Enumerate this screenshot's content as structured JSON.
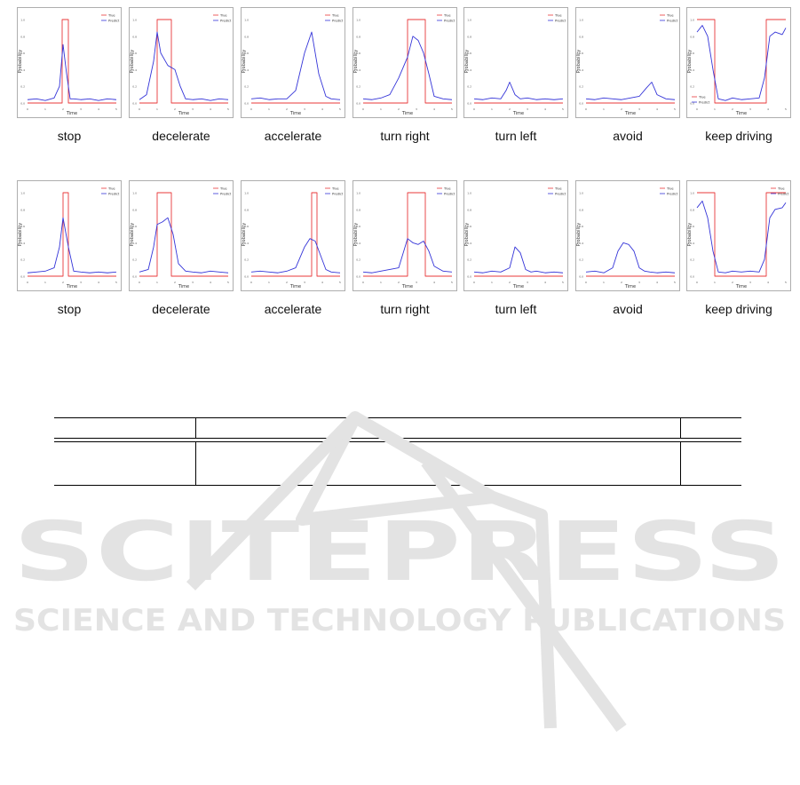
{
  "figure": {
    "legend": {
      "true_label": "True",
      "predict_label": "Predict"
    },
    "axis": {
      "xlabel": "Time",
      "ylabel": "Probability"
    },
    "colors": {
      "true": "#e8383a",
      "predict": "#3434d8",
      "frame": "#9a9a9a"
    },
    "rows": [
      {
        "panels": [
          {
            "caption": "stop"
          },
          {
            "caption": "decelerate"
          },
          {
            "caption": "accelerate"
          },
          {
            "caption": "turn right"
          },
          {
            "caption": "turn left"
          },
          {
            "caption": "avoid"
          },
          {
            "caption": "keep driving"
          }
        ]
      },
      {
        "panels": [
          {
            "caption": "stop"
          },
          {
            "caption": "decelerate"
          },
          {
            "caption": "accelerate"
          },
          {
            "caption": "turn right"
          },
          {
            "caption": "turn left"
          },
          {
            "caption": "avoid"
          },
          {
            "caption": "keep driving"
          }
        ]
      }
    ]
  },
  "chart_data": [
    {
      "type": "line",
      "row": 1,
      "caption": "stop",
      "xlabel": "Time",
      "ylabel": "Probability",
      "xlim": [
        0,
        5
      ],
      "ylim": [
        0,
        1
      ],
      "series": [
        {
          "name": "True",
          "x": [
            0,
            1.95,
            1.95,
            2.3,
            2.3,
            5
          ],
          "values": [
            0,
            0,
            1,
            1,
            0,
            0
          ]
        },
        {
          "name": "Predict",
          "x": [
            0,
            0.5,
            1,
            1.5,
            1.8,
            2.0,
            2.2,
            2.4,
            2.6,
            3,
            3.5,
            4,
            4.5,
            5
          ],
          "values": [
            0.04,
            0.05,
            0.03,
            0.06,
            0.2,
            0.7,
            0.35,
            0.05,
            0.05,
            0.04,
            0.05,
            0.03,
            0.05,
            0.04
          ]
        }
      ]
    },
    {
      "type": "line",
      "row": 1,
      "caption": "decelerate",
      "xlabel": "Time",
      "ylabel": "Probability",
      "xlim": [
        0,
        5
      ],
      "ylim": [
        0,
        1
      ],
      "series": [
        {
          "name": "True",
          "x": [
            0,
            1.0,
            1.0,
            1.8,
            1.8,
            5
          ],
          "values": [
            0,
            0,
            1,
            1,
            0,
            0
          ]
        },
        {
          "name": "Predict",
          "x": [
            0,
            0.4,
            0.8,
            1.0,
            1.2,
            1.6,
            2.0,
            2.3,
            2.6,
            3,
            3.5,
            4,
            4.5,
            5
          ],
          "values": [
            0.04,
            0.1,
            0.5,
            0.85,
            0.6,
            0.45,
            0.4,
            0.2,
            0.05,
            0.04,
            0.05,
            0.03,
            0.05,
            0.04
          ]
        }
      ]
    },
    {
      "type": "line",
      "row": 1,
      "caption": "accelerate",
      "xlabel": "Time",
      "ylabel": "Probability",
      "xlim": [
        0,
        5
      ],
      "ylim": [
        0,
        1
      ],
      "series": [
        {
          "name": "True",
          "x": [
            0,
            5
          ],
          "values": [
            0,
            0
          ]
        },
        {
          "name": "Predict",
          "x": [
            0,
            0.5,
            1,
            1.5,
            2,
            2.5,
            3.0,
            3.4,
            3.8,
            4.2,
            4.5,
            5
          ],
          "values": [
            0.05,
            0.06,
            0.04,
            0.05,
            0.05,
            0.15,
            0.6,
            0.85,
            0.35,
            0.08,
            0.05,
            0.04
          ]
        }
      ]
    },
    {
      "type": "line",
      "row": 1,
      "caption": "turn right",
      "xlabel": "Time",
      "ylabel": "Probability",
      "xlim": [
        0,
        5
      ],
      "ylim": [
        0,
        1
      ],
      "series": [
        {
          "name": "True",
          "x": [
            0,
            2.5,
            2.5,
            3.5,
            3.5,
            5
          ],
          "values": [
            0,
            0,
            1,
            1,
            0,
            0
          ]
        },
        {
          "name": "Predict",
          "x": [
            0,
            0.5,
            1,
            1.5,
            2.0,
            2.5,
            2.8,
            3.1,
            3.4,
            3.7,
            4.0,
            4.5,
            5
          ],
          "values": [
            0.05,
            0.04,
            0.06,
            0.1,
            0.3,
            0.55,
            0.8,
            0.75,
            0.6,
            0.35,
            0.08,
            0.05,
            0.04
          ]
        }
      ]
    },
    {
      "type": "line",
      "row": 1,
      "caption": "turn left",
      "xlabel": "Time",
      "ylabel": "Probability",
      "xlim": [
        0,
        5
      ],
      "ylim": [
        0,
        1
      ],
      "series": [
        {
          "name": "True",
          "x": [
            0,
            5
          ],
          "values": [
            0,
            0
          ]
        },
        {
          "name": "Predict",
          "x": [
            0,
            0.5,
            1,
            1.5,
            1.8,
            2.0,
            2.3,
            2.6,
            3,
            3.5,
            4,
            4.5,
            5
          ],
          "values": [
            0.05,
            0.04,
            0.06,
            0.05,
            0.15,
            0.25,
            0.1,
            0.05,
            0.06,
            0.04,
            0.05,
            0.04,
            0.05
          ]
        }
      ]
    },
    {
      "type": "line",
      "row": 1,
      "caption": "avoid",
      "xlabel": "Time",
      "ylabel": "Probability",
      "xlim": [
        0,
        5
      ],
      "ylim": [
        0,
        1
      ],
      "series": [
        {
          "name": "True",
          "x": [
            0,
            5
          ],
          "values": [
            0,
            0
          ]
        },
        {
          "name": "Predict",
          "x": [
            0,
            0.5,
            1,
            1.5,
            2,
            2.5,
            3,
            3.4,
            3.7,
            4.0,
            4.5,
            5
          ],
          "values": [
            0.05,
            0.04,
            0.06,
            0.05,
            0.04,
            0.06,
            0.08,
            0.18,
            0.25,
            0.1,
            0.05,
            0.04
          ]
        }
      ]
    },
    {
      "type": "line",
      "row": 1,
      "caption": "keep driving",
      "xlabel": "Time",
      "ylabel": "Probability",
      "xlim": [
        0,
        5
      ],
      "ylim": [
        0,
        1
      ],
      "series": [
        {
          "name": "True",
          "x": [
            0,
            1.0,
            1.0,
            3.9,
            3.9,
            5
          ],
          "values": [
            1,
            1,
            0,
            0,
            1,
            1
          ]
        },
        {
          "name": "Predict",
          "x": [
            0,
            0.3,
            0.6,
            0.9,
            1.2,
            1.6,
            2,
            2.5,
            3,
            3.5,
            3.8,
            4.1,
            4.4,
            4.8,
            5
          ],
          "values": [
            0.85,
            0.93,
            0.8,
            0.4,
            0.05,
            0.03,
            0.06,
            0.04,
            0.05,
            0.06,
            0.3,
            0.8,
            0.85,
            0.82,
            0.9
          ]
        }
      ]
    },
    {
      "type": "line",
      "row": 2,
      "caption": "stop",
      "xlabel": "Time",
      "ylabel": "Probability",
      "xlim": [
        0,
        5
      ],
      "ylim": [
        0,
        1
      ],
      "series": [
        {
          "name": "True",
          "x": [
            0,
            2.0,
            2.0,
            2.3,
            2.3,
            5
          ],
          "values": [
            0,
            0,
            1,
            1,
            0,
            0
          ]
        },
        {
          "name": "Predict",
          "x": [
            0,
            0.5,
            1,
            1.5,
            1.8,
            2.0,
            2.3,
            2.6,
            3,
            3.5,
            4,
            4.5,
            5
          ],
          "values": [
            0.04,
            0.05,
            0.06,
            0.1,
            0.35,
            0.7,
            0.35,
            0.06,
            0.05,
            0.04,
            0.05,
            0.04,
            0.05
          ]
        }
      ]
    },
    {
      "type": "line",
      "row": 2,
      "caption": "decelerate",
      "xlabel": "Time",
      "ylabel": "Probability",
      "xlim": [
        0,
        5
      ],
      "ylim": [
        0,
        1
      ],
      "series": [
        {
          "name": "True",
          "x": [
            0,
            1.0,
            1.0,
            1.8,
            1.8,
            5
          ],
          "values": [
            0,
            0,
            1,
            1,
            0,
            0
          ]
        },
        {
          "name": "Predict",
          "x": [
            0,
            0.5,
            0.8,
            1.0,
            1.3,
            1.6,
            1.9,
            2.2,
            2.6,
            3,
            3.5,
            4,
            4.5,
            5
          ],
          "values": [
            0.05,
            0.08,
            0.35,
            0.62,
            0.65,
            0.7,
            0.5,
            0.15,
            0.06,
            0.05,
            0.04,
            0.06,
            0.05,
            0.04
          ]
        }
      ]
    },
    {
      "type": "line",
      "row": 2,
      "caption": "accelerate",
      "xlabel": "Time",
      "ylabel": "Probability",
      "xlim": [
        0,
        5
      ],
      "ylim": [
        0,
        1
      ],
      "series": [
        {
          "name": "True",
          "x": [
            0,
            3.4,
            3.4,
            3.7,
            3.7,
            5
          ],
          "values": [
            0,
            0,
            1,
            1,
            0,
            0
          ]
        },
        {
          "name": "Predict",
          "x": [
            0,
            0.5,
            1,
            1.5,
            2,
            2.5,
            3.0,
            3.3,
            3.6,
            3.9,
            4.2,
            4.5,
            5
          ],
          "values": [
            0.05,
            0.06,
            0.05,
            0.04,
            0.06,
            0.1,
            0.35,
            0.45,
            0.42,
            0.25,
            0.08,
            0.05,
            0.04
          ]
        }
      ]
    },
    {
      "type": "line",
      "row": 2,
      "caption": "turn right",
      "xlabel": "Time",
      "ylabel": "Probability",
      "xlim": [
        0,
        5
      ],
      "ylim": [
        0,
        1
      ],
      "series": [
        {
          "name": "True",
          "x": [
            0,
            2.5,
            2.5,
            3.5,
            3.5,
            5
          ],
          "values": [
            0,
            0,
            1,
            1,
            0,
            0
          ]
        },
        {
          "name": "Predict",
          "x": [
            0,
            0.5,
            1,
            1.5,
            2.0,
            2.5,
            2.8,
            3.1,
            3.4,
            3.7,
            4.0,
            4.5,
            5
          ],
          "values": [
            0.05,
            0.04,
            0.06,
            0.08,
            0.1,
            0.45,
            0.4,
            0.38,
            0.42,
            0.3,
            0.12,
            0.06,
            0.05
          ]
        }
      ]
    },
    {
      "type": "line",
      "row": 2,
      "caption": "turn left",
      "xlabel": "Time",
      "ylabel": "Probability",
      "xlim": [
        0,
        5
      ],
      "ylim": [
        0,
        1
      ],
      "series": [
        {
          "name": "True",
          "x": [
            0,
            5
          ],
          "values": [
            0,
            0
          ]
        },
        {
          "name": "Predict",
          "x": [
            0,
            0.5,
            1,
            1.5,
            2.0,
            2.3,
            2.6,
            2.9,
            3.2,
            3.5,
            4,
            4.5,
            5
          ],
          "values": [
            0.05,
            0.04,
            0.06,
            0.05,
            0.1,
            0.35,
            0.28,
            0.08,
            0.05,
            0.06,
            0.04,
            0.05,
            0.04
          ]
        }
      ]
    },
    {
      "type": "line",
      "row": 2,
      "caption": "avoid",
      "xlabel": "Time",
      "ylabel": "Probability",
      "xlim": [
        0,
        5
      ],
      "ylim": [
        0,
        1
      ],
      "series": [
        {
          "name": "True",
          "x": [
            0,
            5
          ],
          "values": [
            0,
            0
          ]
        },
        {
          "name": "Predict",
          "x": [
            0,
            0.5,
            1,
            1.5,
            1.8,
            2.1,
            2.4,
            2.7,
            3.0,
            3.3,
            3.6,
            4,
            4.5,
            5
          ],
          "values": [
            0.05,
            0.06,
            0.04,
            0.1,
            0.3,
            0.4,
            0.38,
            0.3,
            0.1,
            0.06,
            0.05,
            0.04,
            0.05,
            0.04
          ]
        }
      ]
    },
    {
      "type": "line",
      "row": 2,
      "caption": "keep driving",
      "xlabel": "Time",
      "ylabel": "Probability",
      "xlim": [
        0,
        5
      ],
      "ylim": [
        0,
        1
      ],
      "series": [
        {
          "name": "True",
          "x": [
            0,
            1.0,
            1.0,
            3.9,
            3.9,
            5
          ],
          "values": [
            1,
            1,
            0,
            0,
            1,
            1
          ]
        },
        {
          "name": "Predict",
          "x": [
            0,
            0.3,
            0.6,
            0.9,
            1.2,
            1.6,
            2,
            2.5,
            3,
            3.5,
            3.8,
            4.1,
            4.4,
            4.8,
            5
          ],
          "values": [
            0.82,
            0.9,
            0.7,
            0.3,
            0.05,
            0.04,
            0.06,
            0.05,
            0.06,
            0.05,
            0.2,
            0.7,
            0.8,
            0.82,
            0.88
          ]
        }
      ]
    }
  ],
  "watermark": {
    "brand": "SCITEPRESS",
    "tagline": "SCIENCE AND TECHNOLOGY PUBLICATIONS",
    "color": "#e3e3e3"
  }
}
